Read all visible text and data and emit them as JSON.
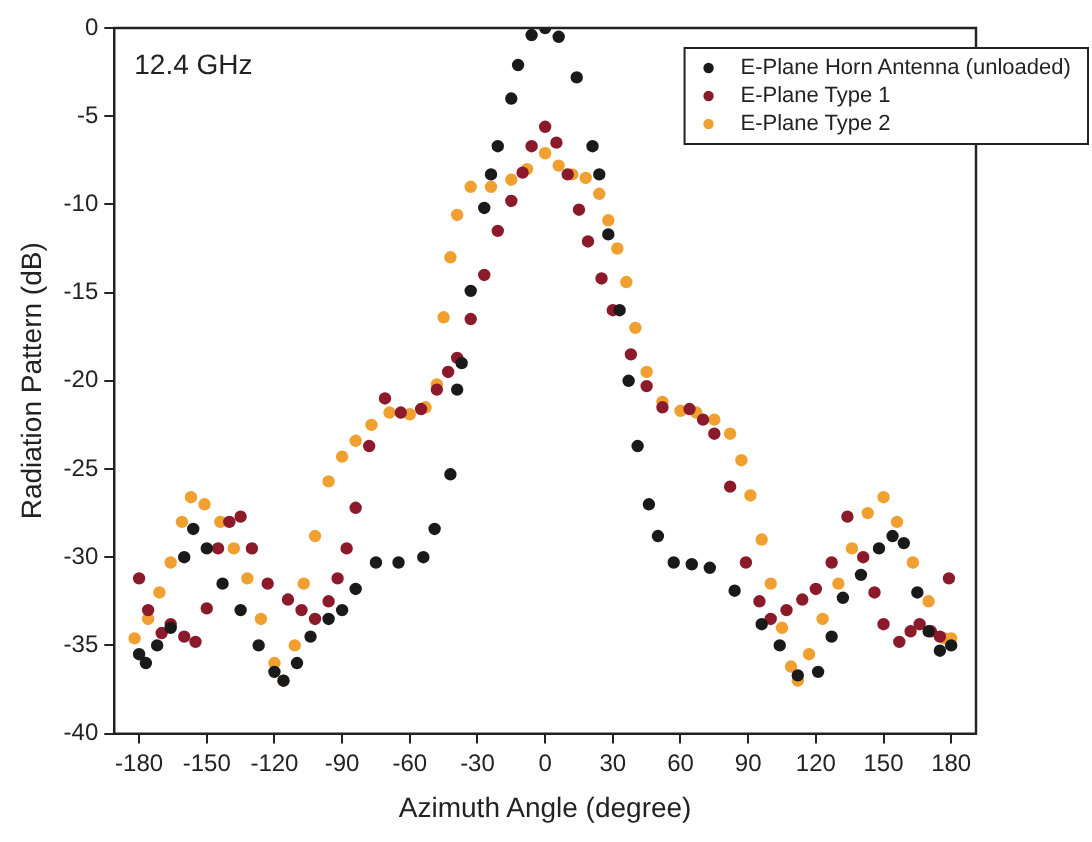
{
  "chart_data": {
    "type": "scatter",
    "xlabel": "Azimuth Angle (degree)",
    "ylabel": "Radiation Pattern (dB)",
    "annotations": [
      "12.4 GHz"
    ],
    "xlim": [
      -191,
      191
    ],
    "xticks": [
      -180,
      -150,
      -120,
      -90,
      -60,
      -30,
      0,
      30,
      60,
      90,
      120,
      150,
      180
    ],
    "ylim": [
      -40,
      0
    ],
    "yticks": [
      -40,
      -35,
      -30,
      -25,
      -20,
      -15,
      -10,
      -5,
      0
    ],
    "grid": false,
    "legend": "top right",
    "marker": "circle",
    "series": [
      {
        "name": "E-Plane Horn Antenna (unloaded)",
        "color": "#1a1a1a",
        "x": [
          -180,
          -177,
          -172,
          -166,
          -160,
          -156,
          -150,
          -143,
          -135,
          -127,
          -120,
          -116,
          -110,
          -104,
          -96,
          -90,
          -84,
          -75,
          -65,
          -54,
          -49,
          -42,
          -39,
          -37,
          -33,
          -27,
          -24,
          -21,
          -15,
          -12,
          -6,
          0,
          6,
          14,
          21,
          24,
          28,
          33,
          37,
          41,
          46,
          50,
          57,
          65,
          73,
          84,
          96,
          104,
          112,
          121,
          127,
          132,
          140,
          148,
          154,
          159,
          165,
          170,
          175,
          180
        ],
        "values": [
          -35.5,
          -36,
          -35,
          -34,
          -30,
          -28.4,
          -29.5,
          -31.5,
          -33,
          -35,
          -36.5,
          -37,
          -36,
          -34.5,
          -33.5,
          -33,
          -31.8,
          -30.3,
          -30.3,
          -30,
          -28.4,
          -25.3,
          -20.5,
          -19,
          -14.9,
          -10.2,
          -8.3,
          -6.7,
          -4,
          -2.1,
          -0.4,
          0,
          -0.5,
          -2.8,
          -6.7,
          -8.3,
          -11.7,
          -16,
          -20,
          -23.7,
          -27,
          -28.8,
          -30.3,
          -30.4,
          -30.6,
          -31.9,
          -33.8,
          -35,
          -36.7,
          -36.5,
          -34.5,
          -32.3,
          -31,
          -29.5,
          -28.8,
          -29.2,
          -32,
          -34.2,
          -35.3,
          -35
        ]
      },
      {
        "name": "E-Plane Type 1",
        "color": "#8b1a2a",
        "x": [
          -180,
          -176,
          -170,
          -166,
          -160,
          -155,
          -150,
          -145,
          -140,
          -135,
          -130,
          -123,
          -114,
          -108,
          -102,
          -96,
          -92,
          -88,
          -84,
          -78,
          -71,
          -64,
          -55,
          -48,
          -43,
          -39,
          -33,
          -27,
          -21,
          -15,
          -10,
          -6,
          0,
          5,
          10,
          15,
          19,
          25,
          30,
          38,
          45,
          52,
          64,
          70,
          75,
          82,
          89,
          95,
          100,
          107,
          114,
          120,
          127,
          134,
          141,
          146,
          150,
          157,
          162,
          166,
          171,
          175,
          179
        ],
        "values": [
          -31.2,
          -33,
          -34.3,
          -33.8,
          -34.5,
          -34.8,
          -32.9,
          -29.5,
          -28,
          -27.7,
          -29.5,
          -31.5,
          -32.4,
          -33,
          -33.5,
          -32.5,
          -31.2,
          -29.5,
          -27.2,
          -23.7,
          -21,
          -21.8,
          -21.6,
          -20.5,
          -19.5,
          -18.7,
          -16.5,
          -14,
          -11.5,
          -9.8,
          -8.2,
          -6.7,
          -5.6,
          -6.5,
          -8.3,
          -10.3,
          -12.1,
          -14.2,
          -16,
          -18.5,
          -20.3,
          -21.5,
          -21.6,
          -22.2,
          -23,
          -26,
          -30.3,
          -32.5,
          -33.5,
          -33,
          -32.4,
          -31.8,
          -30.3,
          -27.7,
          -30,
          -32,
          -33.8,
          -34.8,
          -34.2,
          -33.8,
          -34.2,
          -34.5,
          -31.2
        ]
      },
      {
        "name": "E-Plane Type 2",
        "color": "#f0a030",
        "x": [
          -182,
          -176,
          -171,
          -166,
          -161,
          -157,
          -151,
          -144,
          -138,
          -132,
          -126,
          -120,
          -116,
          -111,
          -107,
          -102,
          -96,
          -90,
          -84,
          -77,
          -69,
          -60,
          -53,
          -48,
          -45,
          -42,
          -39,
          -33,
          -24,
          -15,
          -8,
          0,
          6,
          12,
          18,
          24,
          28,
          32,
          36,
          40,
          45,
          52,
          60,
          67,
          75,
          82,
          87,
          91,
          96,
          100,
          105,
          109,
          112,
          117,
          123,
          130,
          136,
          143,
          150,
          156,
          163,
          170,
          177,
          180
        ],
        "values": [
          -34.6,
          -33.5,
          -32,
          -30.3,
          -28,
          -26.6,
          -27,
          -28,
          -29.5,
          -31.2,
          -33.5,
          -36,
          -37,
          -35,
          -31.5,
          -28.8,
          -25.7,
          -24.3,
          -23.4,
          -22.5,
          -21.8,
          -21.9,
          -21.5,
          -20.2,
          -16.4,
          -13,
          -10.6,
          -9,
          -9,
          -8.6,
          -8,
          -7.1,
          -7.8,
          -8.3,
          -8.5,
          -9.4,
          -10.9,
          -12.5,
          -14.4,
          -17,
          -19.5,
          -21.2,
          -21.7,
          -21.8,
          -22.2,
          -23,
          -24.5,
          -26.5,
          -29,
          -31.5,
          -34,
          -36.2,
          -37,
          -35.5,
          -33.5,
          -31.5,
          -29.5,
          -27.5,
          -26.6,
          -28,
          -30.3,
          -32.5,
          -34.6,
          -34.6
        ]
      }
    ]
  }
}
